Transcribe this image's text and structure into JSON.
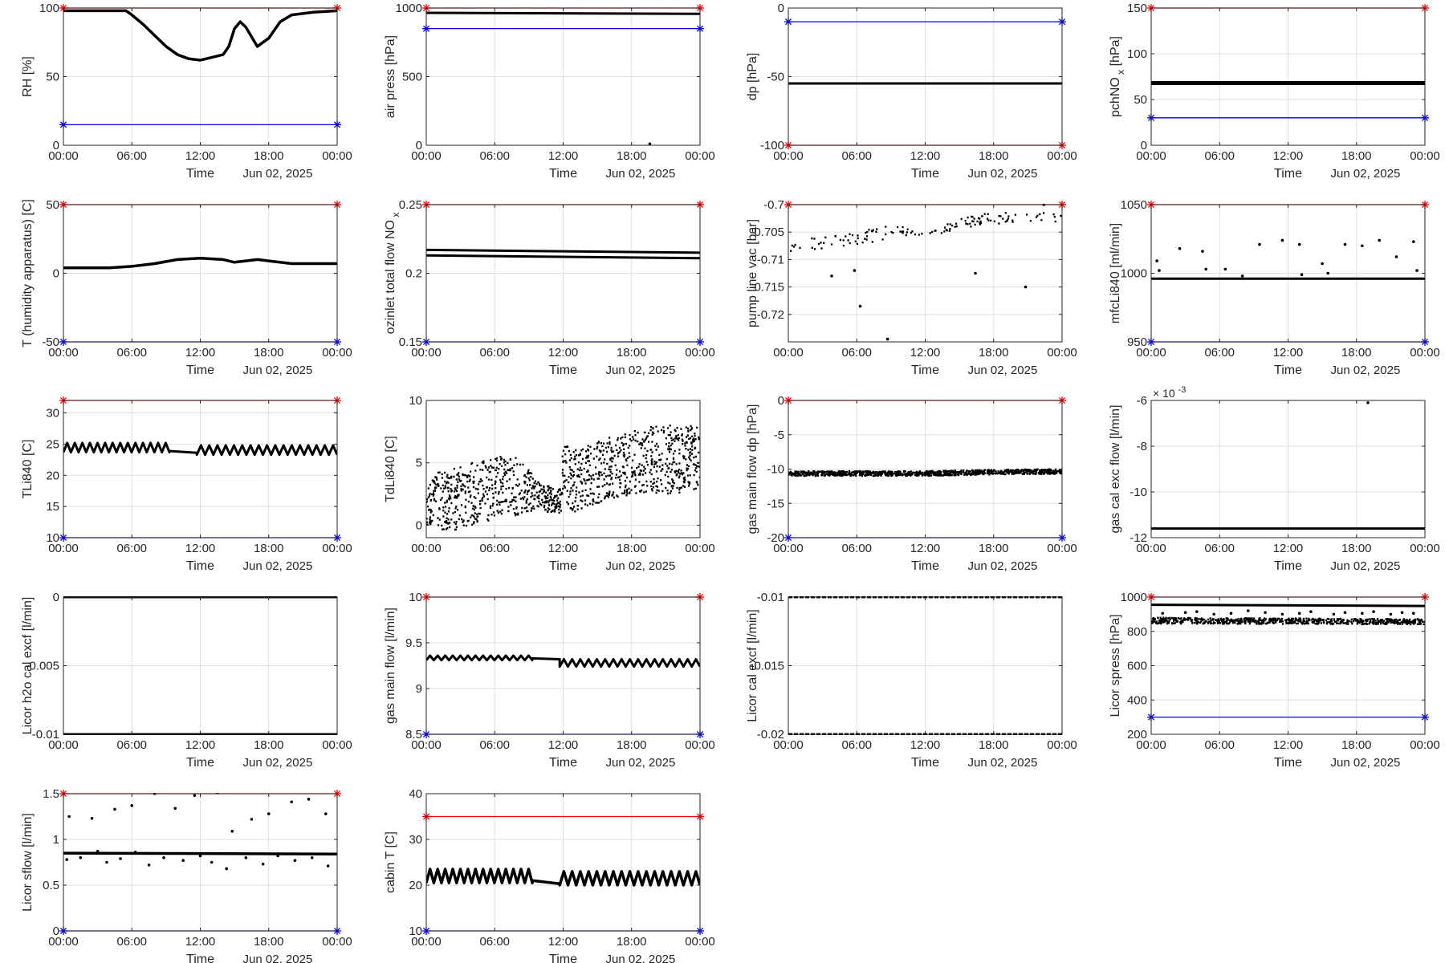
{
  "shared": {
    "x_tick_labels": [
      "00:00",
      "06:00",
      "12:00",
      "18:00",
      "00:00"
    ],
    "xlabel": "Time",
    "date_label": "Jun 02, 2025"
  },
  "colors": {
    "upper_limit": "#ff0000",
    "lower_limit": "#0000ff",
    "data": "#000000",
    "grid": "#e0e0e0"
  },
  "chart_data": [
    {
      "type": "line",
      "ylabel": "RH [%]",
      "ylim": [
        0,
        100
      ],
      "yticks": [
        0,
        50,
        100
      ],
      "ytick_labels": [
        "0",
        "50",
        "100"
      ],
      "xlim": [
        0,
        24
      ],
      "upper_limit": 100,
      "lower_limit": 15,
      "grid": true,
      "series": [
        {
          "shape": "line",
          "width": 3.5,
          "x": [
            0,
            2,
            5.5,
            6,
            7,
            8,
            9,
            10,
            11,
            12,
            13,
            14,
            14.5,
            15,
            15.5,
            16,
            17,
            18,
            19,
            20,
            22,
            24
          ],
          "y": [
            98,
            98,
            98,
            95,
            88,
            80,
            72,
            66,
            63,
            62,
            64,
            66,
            72,
            85,
            90,
            86,
            72,
            78,
            90,
            95,
            97,
            98
          ]
        }
      ]
    },
    {
      "type": "line",
      "ylabel": "air press [hPa]",
      "ylim": [
        0,
        1000
      ],
      "yticks": [
        0,
        500,
        1000
      ],
      "ytick_labels": [
        "0",
        "500",
        "1000"
      ],
      "xlim": [
        0,
        24
      ],
      "upper_limit": 1000,
      "lower_limit": 850,
      "grid": true,
      "series": [
        {
          "shape": "line",
          "width": 3,
          "x": [
            0,
            24
          ],
          "y": [
            965,
            958
          ]
        },
        {
          "shape": "dots",
          "x": [
            19.6
          ],
          "y": [
            10
          ]
        }
      ]
    },
    {
      "type": "line",
      "ylabel": "dp [hPa]",
      "ylim": [
        -100,
        0
      ],
      "yticks": [
        -100,
        -50,
        0
      ],
      "ytick_labels": [
        "-100",
        "-50",
        "0"
      ],
      "xlim": [
        0,
        24
      ],
      "upper_limit": -100,
      "lower_limit": -10,
      "grid": true,
      "series": [
        {
          "shape": "line",
          "width": 3,
          "x": [
            0,
            24
          ],
          "y": [
            -55,
            -55
          ]
        }
      ]
    },
    {
      "type": "line",
      "ylabel": "pchNO",
      "ylabel_sub": "x",
      "ylabel_suffix": " [hPa]",
      "ylim": [
        0,
        150
      ],
      "yticks": [
        0,
        50,
        100,
        150
      ],
      "ytick_labels": [
        "0",
        "50",
        "100",
        "150"
      ],
      "xlim": [
        0,
        24
      ],
      "upper_limit": 150,
      "lower_limit": 30,
      "grid": true,
      "series": [
        {
          "shape": "line",
          "width": 5,
          "x": [
            0,
            24
          ],
          "y": [
            68,
            68
          ]
        }
      ]
    },
    {
      "type": "line",
      "ylabel": "T (humidity apparatus) [C]",
      "ylim": [
        -50,
        50
      ],
      "yticks": [
        -50,
        0,
        50
      ],
      "ytick_labels": [
        "-50",
        "0",
        "50"
      ],
      "xlim": [
        0,
        24
      ],
      "upper_limit": 50,
      "lower_limit": -50,
      "grid": true,
      "series": [
        {
          "shape": "line",
          "width": 3.5,
          "x": [
            0,
            4,
            6,
            8,
            10,
            12,
            14,
            15,
            16,
            17,
            18,
            20,
            24
          ],
          "y": [
            4,
            4,
            5,
            7,
            10,
            11,
            10,
            8,
            9,
            10,
            9,
            7,
            7
          ]
        }
      ]
    },
    {
      "type": "line",
      "ylabel": "ozinlet total flow NO",
      "ylabel_sub": "x",
      "ylim": [
        0.15,
        0.25
      ],
      "yticks": [
        0.15,
        0.2,
        0.25
      ],
      "ytick_labels": [
        "0.15",
        "0.2",
        "0.25"
      ],
      "xlim": [
        0,
        24
      ],
      "upper_limit": 0.25,
      "lower_limit": 0.15,
      "grid": true,
      "series": [
        {
          "shape": "line",
          "width": 3,
          "x": [
            0,
            24
          ],
          "y": [
            0.217,
            0.215
          ]
        },
        {
          "shape": "line",
          "width": 3,
          "x": [
            0,
            24
          ],
          "y": [
            0.213,
            0.211
          ]
        }
      ]
    },
    {
      "type": "line",
      "ylabel": "pump line vac [bar]",
      "ylim": [
        -0.725,
        -0.7
      ],
      "yticks": [
        -0.72,
        -0.715,
        -0.71,
        -0.705,
        -0.7
      ],
      "ytick_labels": [
        "-0.72",
        "-0.715",
        "-0.71",
        "-0.705",
        "-0.7"
      ],
      "xlim": [
        0,
        24
      ],
      "upper_limit": -0.7,
      "lower_limit": null,
      "grid": true,
      "series": [
        {
          "shape": "band",
          "x": [
            0,
            2,
            4,
            6,
            8,
            10,
            12,
            14,
            16,
            18,
            20,
            22,
            24
          ],
          "ylo": [
            -0.7095,
            -0.7085,
            -0.708,
            -0.7075,
            -0.7065,
            -0.7055,
            -0.706,
            -0.705,
            -0.704,
            -0.7035,
            -0.7035,
            -0.7035,
            -0.703
          ],
          "yhi": [
            -0.7065,
            -0.706,
            -0.7055,
            -0.705,
            -0.704,
            -0.704,
            -0.7055,
            -0.7035,
            -0.702,
            -0.7015,
            -0.7015,
            -0.7015,
            -0.701
          ],
          "density": 130
        },
        {
          "shape": "dots",
          "x": [
            3.8,
            5.8,
            6.3,
            8.7,
            16.4,
            20.8,
            22.4
          ],
          "y": [
            -0.713,
            -0.712,
            -0.7185,
            -0.7245,
            -0.7125,
            -0.715,
            -0.7
          ]
        }
      ]
    },
    {
      "type": "line",
      "ylabel": "mfcLi840 [ml/min]",
      "ylim": [
        950,
        1050
      ],
      "yticks": [
        950,
        1000,
        1050
      ],
      "ytick_labels": [
        "950",
        "1000",
        "1050"
      ],
      "xlim": [
        0,
        24
      ],
      "upper_limit": 1050,
      "lower_limit": 950,
      "grid": true,
      "series": [
        {
          "shape": "line",
          "width": 3,
          "x": [
            0,
            24
          ],
          "y": [
            996,
            996
          ]
        },
        {
          "shape": "dots",
          "x": [
            0.5,
            0.7,
            2.5,
            4.5,
            4.8,
            6.5,
            8,
            9.5,
            11.5,
            13,
            13.2,
            15,
            15.5,
            17,
            18.5,
            20,
            21.5,
            23,
            23.3
          ],
          "y": [
            1009,
            1002,
            1018,
            1016,
            1003,
            1003,
            998,
            1021,
            1024,
            1021,
            999,
            1007,
            1000,
            1021,
            1020,
            1024,
            1012,
            1023,
            1002
          ]
        }
      ]
    },
    {
      "type": "line",
      "ylabel": "TLi840 [C]",
      "ylim": [
        10,
        32
      ],
      "yticks": [
        10,
        15,
        20,
        25,
        30
      ],
      "ytick_labels": [
        "10",
        "15",
        "20",
        "25",
        "30"
      ],
      "xlim": [
        0,
        24
      ],
      "upper_limit": 32,
      "lower_limit": 10,
      "grid": true,
      "series": [
        {
          "shape": "sawtooth",
          "width": 3,
          "segments": [
            {
              "x0": 0,
              "x1": 9.3,
              "cycles": 14,
              "lo": 23.7,
              "hi": 25.2
            },
            {
              "x0": 9.3,
              "x1": 11.7,
              "cycles": 0,
              "lo": 23.6,
              "hi": 23.9
            },
            {
              "x0": 11.7,
              "x1": 24,
              "cycles": 17,
              "lo": 23.3,
              "hi": 24.8
            }
          ]
        }
      ]
    },
    {
      "type": "scatter",
      "ylabel": "TdLi840 [C]",
      "ylim": [
        -1,
        10
      ],
      "yticks": [
        0,
        5,
        10
      ],
      "ytick_labels": [
        "0",
        "5",
        "10"
      ],
      "xlim": [
        0,
        24
      ],
      "upper_limit": null,
      "lower_limit": null,
      "grid": true,
      "series": [
        {
          "shape": "band",
          "x": [
            0,
            2,
            4,
            6,
            8,
            9,
            10,
            11,
            11.8,
            12,
            13,
            14,
            16,
            18,
            20,
            22,
            24
          ],
          "ylo": [
            0,
            -0.5,
            0,
            0.5,
            0.8,
            1,
            1,
            1,
            1,
            2,
            1,
            1.5,
            2,
            2.5,
            2.5,
            2.5,
            3
          ],
          "yhi": [
            4,
            4.5,
            5,
            5.5,
            5.5,
            4.5,
            3.5,
            3,
            3,
            6.5,
            6,
            6.5,
            7,
            7.5,
            8,
            8,
            8
          ],
          "density": 1200
        }
      ]
    },
    {
      "type": "line",
      "ylabel": "gas main flow dp [hPa]",
      "ylim": [
        -20,
        0
      ],
      "yticks": [
        -20,
        -15,
        -10,
        -5,
        0
      ],
      "ytick_labels": [
        "-20",
        "-15",
        "-10",
        "-5",
        "0"
      ],
      "xlim": [
        0,
        24
      ],
      "upper_limit": 0,
      "lower_limit": -20,
      "grid": true,
      "series": [
        {
          "shape": "band",
          "x": [
            0,
            12,
            18,
            24
          ],
          "ylo": [
            -11,
            -11,
            -10.8,
            -10.7
          ],
          "yhi": [
            -10.3,
            -10.3,
            -10.1,
            -10
          ],
          "density": 900
        }
      ]
    },
    {
      "type": "line",
      "ylabel": "gas cal exc flow [l/min]",
      "ylim": [
        -0.012,
        -0.006
      ],
      "yticks": [
        -0.012,
        -0.01,
        -0.008,
        -0.006
      ],
      "ytick_labels": [
        "-12",
        "-10",
        "-8",
        "-6"
      ],
      "y_exponent_base": "× 10",
      "y_exponent_power": "-3",
      "xlim": [
        0,
        24
      ],
      "upper_limit": null,
      "lower_limit": null,
      "grid": true,
      "series": [
        {
          "shape": "line",
          "width": 3,
          "x": [
            0,
            24
          ],
          "y": [
            -0.0116,
            -0.0116
          ]
        },
        {
          "shape": "dots",
          "x": [
            19
          ],
          "y": [
            -0.0061
          ]
        }
      ]
    },
    {
      "type": "line",
      "ylabel": "Licor h2o cal excf [l/min]",
      "ylim": [
        -0.01,
        0
      ],
      "yticks": [
        -0.01,
        -0.005,
        0
      ],
      "ytick_labels": [
        "-0.01",
        "-0.005",
        "0"
      ],
      "xlim": [
        0,
        24
      ],
      "upper_limit": null,
      "lower_limit": null,
      "grid": true,
      "series": [
        {
          "shape": "line",
          "width": 3,
          "x": [
            0,
            24
          ],
          "y": [
            0,
            0
          ]
        },
        {
          "shape": "line",
          "width": 3,
          "x": [
            0,
            24
          ],
          "y": [
            -0.01,
            -0.01
          ]
        }
      ]
    },
    {
      "type": "line",
      "ylabel": "gas main flow [l/min]",
      "ylim": [
        8.5,
        10
      ],
      "yticks": [
        8.5,
        9,
        9.5,
        10
      ],
      "ytick_labels": [
        "8.5",
        "9",
        "9.5",
        "10"
      ],
      "xlim": [
        0,
        24
      ],
      "upper_limit": 10,
      "lower_limit": 8.5,
      "grid": true,
      "series": [
        {
          "shape": "sawtooth",
          "width": 3,
          "segments": [
            {
              "x0": 0,
              "x1": 9.3,
              "cycles": 14,
              "lo": 9.31,
              "hi": 9.36
            },
            {
              "x0": 9.3,
              "x1": 11.7,
              "cycles": 0,
              "lo": 9.32,
              "hi": 9.33
            },
            {
              "x0": 11.7,
              "x1": 24,
              "cycles": 17,
              "lo": 9.24,
              "hi": 9.32
            }
          ]
        }
      ]
    },
    {
      "type": "line",
      "ylabel": "Licor cal excf [l/min]",
      "ylim": [
        -0.02,
        -0.01
      ],
      "yticks": [
        -0.02,
        -0.015,
        -0.01
      ],
      "ytick_labels": [
        "-0.02",
        "-0.015",
        "-0.01"
      ],
      "xlim": [
        0,
        24
      ],
      "upper_limit": null,
      "lower_limit": null,
      "grid": true,
      "series": [
        {
          "shape": "line",
          "width": 3,
          "dash": "5 2",
          "x": [
            0,
            24
          ],
          "y": [
            -0.01,
            -0.01
          ]
        },
        {
          "shape": "line",
          "width": 3,
          "dash": "5 2",
          "x": [
            0,
            24
          ],
          "y": [
            -0.02,
            -0.02
          ]
        }
      ]
    },
    {
      "type": "line",
      "ylabel": "Licor spress [hPa]",
      "ylim": [
        200,
        1000
      ],
      "yticks": [
        200,
        400,
        600,
        800,
        1000
      ],
      "ytick_labels": [
        "200",
        "400",
        "600",
        "800",
        "1000"
      ],
      "xlim": [
        0,
        24
      ],
      "upper_limit": 1000,
      "lower_limit": 300,
      "grid": true,
      "series": [
        {
          "shape": "line",
          "width": 3,
          "x": [
            0,
            24
          ],
          "y": [
            955,
            948
          ]
        },
        {
          "shape": "band",
          "x": [
            0,
            24
          ],
          "ylo": [
            845,
            840
          ],
          "yhi": [
            880,
            872
          ],
          "density": 700
        },
        {
          "shape": "dots",
          "x": [
            1,
            3,
            4,
            5.5,
            7,
            8.5,
            10,
            11.5,
            13,
            14,
            16,
            17,
            18.5,
            19.5,
            21,
            22,
            23
          ],
          "y": [
            905,
            910,
            915,
            900,
            905,
            920,
            910,
            900,
            905,
            915,
            900,
            910,
            905,
            915,
            900,
            910,
            905
          ]
        }
      ]
    },
    {
      "type": "line",
      "ylabel": "Licor sflow [l/min]",
      "ylim": [
        0,
        1.5
      ],
      "yticks": [
        0,
        0.5,
        1,
        1.5
      ],
      "ytick_labels": [
        "0",
        "0.5",
        "1",
        "1.5"
      ],
      "xlim": [
        0,
        24
      ],
      "upper_limit": 1.5,
      "lower_limit": 0,
      "grid": true,
      "series": [
        {
          "shape": "line",
          "width": 3.5,
          "x": [
            0,
            24
          ],
          "y": [
            0.85,
            0.84
          ]
        },
        {
          "shape": "dots",
          "x": [
            0.5,
            2.5,
            4.5,
            6,
            8,
            9.8,
            11.5,
            13.5,
            14.8,
            16.5,
            18,
            20,
            21.5,
            23
          ],
          "y": [
            1.25,
            1.23,
            1.33,
            1.37,
            1.5,
            1.34,
            1.48,
            1.51,
            1.09,
            1.22,
            1.28,
            1.41,
            1.44,
            1.28
          ]
        },
        {
          "shape": "dots",
          "x": [
            0.3,
            1.5,
            3,
            3.8,
            5,
            6.3,
            7.5,
            8.8,
            10.5,
            12,
            13,
            14.3,
            16,
            17.5,
            18.8,
            20.3,
            21.8,
            23.2
          ],
          "y": [
            0.78,
            0.8,
            0.87,
            0.75,
            0.79,
            0.86,
            0.72,
            0.8,
            0.77,
            0.82,
            0.75,
            0.68,
            0.8,
            0.73,
            0.82,
            0.77,
            0.8,
            0.71
          ]
        }
      ]
    },
    {
      "type": "line",
      "ylabel": "cabin T [C]",
      "ylim": [
        10,
        40
      ],
      "yticks": [
        10,
        20,
        30,
        40
      ],
      "ytick_labels": [
        "10",
        "20",
        "30",
        "40"
      ],
      "xlim": [
        0,
        24
      ],
      "upper_limit": 35,
      "lower_limit": 10,
      "grid": true,
      "series": [
        {
          "shape": "sawtooth",
          "width": 3.5,
          "segments": [
            {
              "x0": 0,
              "x1": 9.3,
              "cycles": 14,
              "lo": 20.5,
              "hi": 23.5
            },
            {
              "x0": 9.3,
              "x1": 11.7,
              "cycles": 0,
              "lo": 20.3,
              "hi": 21
            },
            {
              "x0": 11.7,
              "x1": 24,
              "cycles": 17,
              "lo": 20,
              "hi": 23
            }
          ]
        }
      ]
    }
  ]
}
